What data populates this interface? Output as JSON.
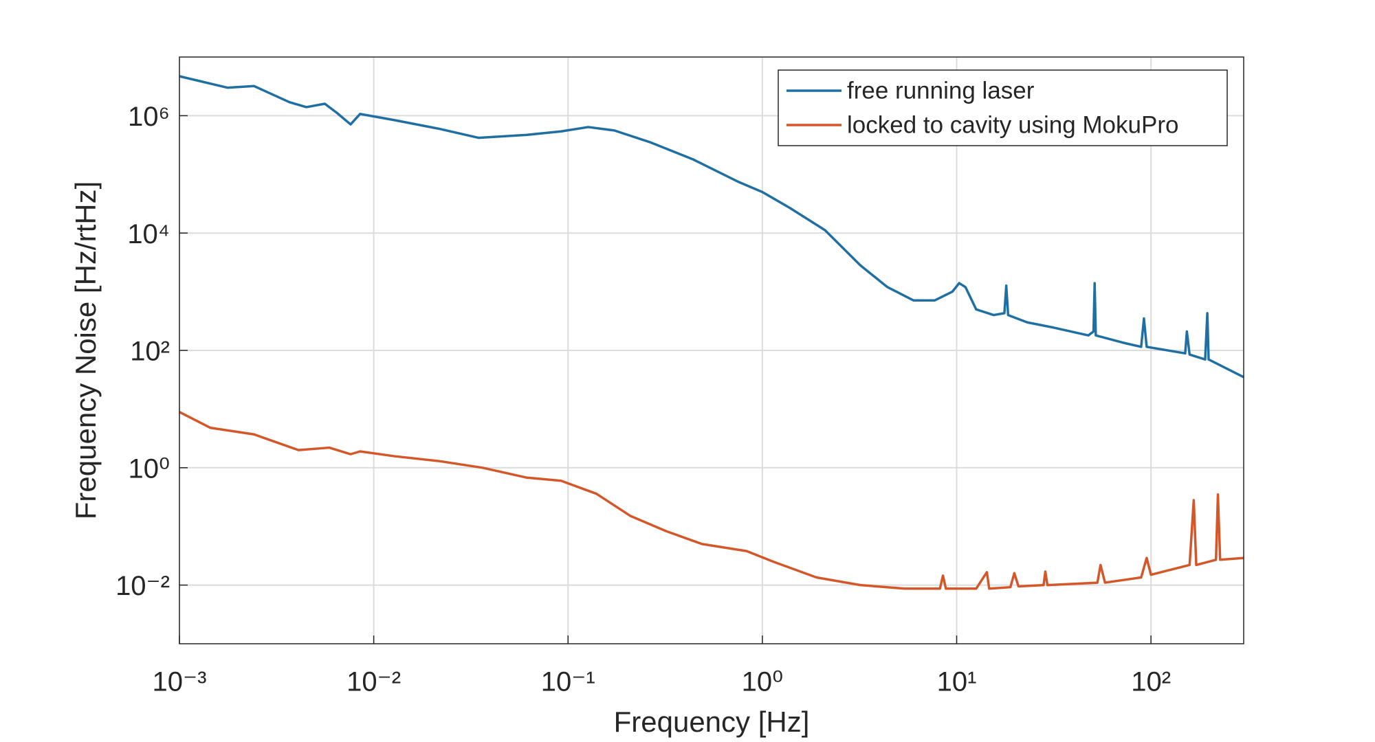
{
  "chart_data": {
    "type": "line",
    "xlabel": "Frequency [Hz]",
    "ylabel": "Frequency Noise [Hz/rtHz]",
    "xscale": "log",
    "yscale": "log",
    "xlim": [
      0.001,
      300
    ],
    "ylim": [
      0.001,
      10000000
    ],
    "xticks": [
      {
        "value": 0.001,
        "label": "10⁻³"
      },
      {
        "value": 0.01,
        "label": "10⁻²"
      },
      {
        "value": 0.1,
        "label": "10⁻¹"
      },
      {
        "value": 1,
        "label": "10⁰"
      },
      {
        "value": 10,
        "label": "10¹"
      },
      {
        "value": 100,
        "label": "10²"
      }
    ],
    "yticks": [
      {
        "value": 0.01,
        "label": "10⁻²"
      },
      {
        "value": 1,
        "label": "10⁰"
      },
      {
        "value": 100,
        "label": "10²"
      },
      {
        "value": 10000,
        "label": "10⁴"
      },
      {
        "value": 1000000,
        "label": "10⁶"
      }
    ],
    "grid": true,
    "legend": "upper right",
    "series": [
      {
        "name": "free running laser",
        "color": "#1f6fa3",
        "x": [
          0.001,
          0.00177,
          0.00242,
          0.00368,
          0.0045,
          0.0056,
          0.0065,
          0.0076,
          0.0085,
          0.0128,
          0.0216,
          0.0346,
          0.061,
          0.092,
          0.127,
          0.173,
          0.263,
          0.44,
          0.75,
          1.0,
          1.38,
          2.1,
          3.2,
          4.4,
          6.0,
          7.7,
          9.5,
          10.3,
          11.1,
          12.6,
          15.5,
          17.6,
          18.0,
          18.4,
          23.1,
          31.5,
          47.6,
          50.6,
          51.3,
          52,
          72,
          89,
          92,
          95,
          150,
          153,
          158,
          190,
          195,
          198,
          300
        ],
        "values": [
          4700000,
          3000000,
          3200000,
          1700000,
          1400000,
          1600000,
          1100000,
          710000,
          1070000,
          840000,
          600000,
          420000,
          470000,
          540000,
          640000,
          560000,
          355000,
          180000,
          75000,
          50000,
          27000,
          11200,
          2800,
          1200,
          710,
          710,
          1000,
          1400,
          1200,
          500,
          400,
          430,
          1270,
          400,
          300,
          245,
          180,
          210,
          1400,
          180,
          135,
          115,
          350,
          115,
          89,
          210,
          85,
          70,
          430,
          70,
          35
        ]
      },
      {
        "name": "locked to cavity using MokuPro",
        "color": "#d4572a",
        "x": [
          0.001,
          0.00144,
          0.00242,
          0.0041,
          0.0059,
          0.0076,
          0.0085,
          0.0128,
          0.0216,
          0.0363,
          0.061,
          0.092,
          0.14,
          0.21,
          0.32,
          0.49,
          0.83,
          1.14,
          1.9,
          3.2,
          5.4,
          8.2,
          8.5,
          8.8,
          12.6,
          14.3,
          14.7,
          18.9,
          19.8,
          20.8,
          28.0,
          28.6,
          29.3,
          53,
          55,
          58,
          89,
          95,
          100,
          158,
          166,
          171,
          216,
          221,
          227,
          300
        ],
        "values": [
          8.9,
          4.8,
          3.7,
          2.0,
          2.2,
          1.7,
          1.9,
          1.57,
          1.3,
          1.0,
          0.68,
          0.6,
          0.36,
          0.15,
          0.083,
          0.05,
          0.038,
          0.025,
          0.0135,
          0.01,
          0.0087,
          0.0087,
          0.0145,
          0.0087,
          0.0087,
          0.0166,
          0.0087,
          0.0092,
          0.016,
          0.0095,
          0.01,
          0.017,
          0.01,
          0.011,
          0.022,
          0.011,
          0.0135,
          0.029,
          0.015,
          0.022,
          0.28,
          0.022,
          0.027,
          0.35,
          0.027,
          0.029
        ]
      }
    ]
  }
}
